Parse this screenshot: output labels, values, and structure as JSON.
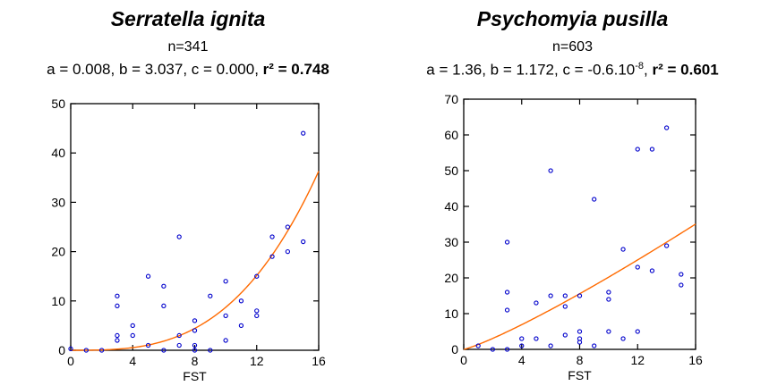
{
  "colors": {
    "points": "#0000cc",
    "fit": "#ff6a00",
    "axis": "#000000"
  },
  "chart_data": [
    {
      "type": "scatter",
      "title": "Serratella ignita",
      "n_label": "n=341",
      "params_text": "a = 0.008, b = 3.037, c = 0.000, ",
      "r2_text": "r² = 0.748",
      "xlabel": "FST",
      "ylabel": "",
      "xlim": [
        0,
        16
      ],
      "ylim": [
        0,
        50
      ],
      "xticks": [
        0,
        4,
        8,
        12,
        16
      ],
      "yticks": [
        0,
        10,
        20,
        30,
        40,
        50
      ],
      "fit": {
        "a": 0.008,
        "b": 3.037,
        "c": 0.0
      },
      "points": [
        [
          0,
          0.3
        ],
        [
          1,
          0
        ],
        [
          2,
          0
        ],
        [
          3,
          2
        ],
        [
          3,
          3
        ],
        [
          3,
          9
        ],
        [
          3,
          11
        ],
        [
          4,
          3
        ],
        [
          4,
          5
        ],
        [
          5,
          1
        ],
        [
          5,
          15
        ],
        [
          6,
          0
        ],
        [
          6,
          9
        ],
        [
          6,
          13
        ],
        [
          7,
          1
        ],
        [
          7,
          3
        ],
        [
          7,
          23
        ],
        [
          8,
          0
        ],
        [
          8,
          1
        ],
        [
          8,
          4
        ],
        [
          8,
          6
        ],
        [
          9,
          0
        ],
        [
          9,
          11
        ],
        [
          10,
          2
        ],
        [
          10,
          7
        ],
        [
          10,
          14
        ],
        [
          11,
          5
        ],
        [
          11,
          10
        ],
        [
          12,
          7
        ],
        [
          12,
          8
        ],
        [
          12,
          15
        ],
        [
          13,
          19
        ],
        [
          13,
          23
        ],
        [
          14,
          20
        ],
        [
          14,
          25
        ],
        [
          15,
          22
        ],
        [
          15,
          44
        ]
      ]
    },
    {
      "type": "scatter",
      "title": "Psychomyia pusilla",
      "n_label": "n=603",
      "params_text": "a = 1.36, b = 1.172, c = -0.6.10",
      "params_sup": "-8",
      "params_after": ", ",
      "r2_text": "r² = 0.601",
      "xlabel": "FST",
      "ylabel": "",
      "xlim": [
        0,
        16
      ],
      "ylim": [
        0,
        70
      ],
      "xticks": [
        0,
        4,
        8,
        12,
        16
      ],
      "yticks": [
        0,
        10,
        20,
        30,
        40,
        50,
        60,
        70
      ],
      "fit": {
        "a": 1.36,
        "b": 1.172,
        "c": 0.0
      },
      "points": [
        [
          1,
          1
        ],
        [
          2,
          0
        ],
        [
          3,
          0
        ],
        [
          3,
          11
        ],
        [
          3,
          16
        ],
        [
          3,
          30
        ],
        [
          4,
          1
        ],
        [
          4,
          3
        ],
        [
          5,
          3
        ],
        [
          5,
          13
        ],
        [
          6,
          1
        ],
        [
          6,
          15
        ],
        [
          6,
          50
        ],
        [
          7,
          4
        ],
        [
          7,
          12
        ],
        [
          7,
          15
        ],
        [
          8,
          2
        ],
        [
          8,
          3
        ],
        [
          8,
          5
        ],
        [
          8,
          15
        ],
        [
          9,
          1
        ],
        [
          9,
          42
        ],
        [
          10,
          5
        ],
        [
          10,
          14
        ],
        [
          10,
          16
        ],
        [
          11,
          3
        ],
        [
          11,
          28
        ],
        [
          12,
          5
        ],
        [
          12,
          23
        ],
        [
          12,
          56
        ],
        [
          13,
          22
        ],
        [
          13,
          56
        ],
        [
          14,
          29
        ],
        [
          14,
          62
        ],
        [
          15,
          18
        ],
        [
          15,
          21
        ]
      ]
    }
  ]
}
